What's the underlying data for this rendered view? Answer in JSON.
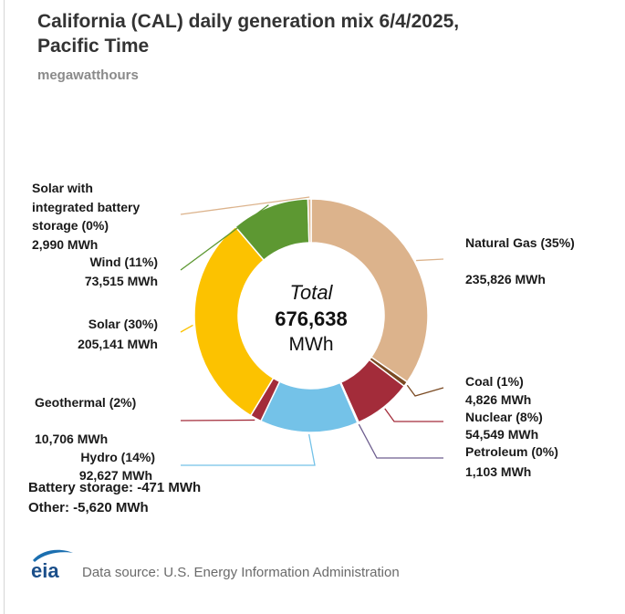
{
  "header": {
    "title_line1": "California (CAL) daily generation mix 6/4/2025,",
    "title_line2": "Pacific Time",
    "subtitle": "megawatthours"
  },
  "chart_data": {
    "type": "pie",
    "variant": "donut",
    "center": {
      "line1": "Total",
      "line2": "676,638",
      "line3": "MWh"
    },
    "slices": [
      {
        "name": "Natural Gas",
        "pct_label": "Natural Gas (35%)",
        "value_label": "235,826 MWh",
        "value": 235826,
        "color": "#dcb38c"
      },
      {
        "name": "Coal",
        "pct_label": "Coal (1%)",
        "value_label": "4,826 MWh",
        "value": 4826,
        "color": "#7a4a22"
      },
      {
        "name": "Nuclear",
        "pct_label": "Nuclear (8%)",
        "value_label": "54,549 MWh",
        "value": 54549,
        "color": "#a32c3a"
      },
      {
        "name": "Petroleum",
        "pct_label": "Petroleum (0%)",
        "value_label": "1,103 MWh",
        "value": 1103,
        "color": "#6e5e8f"
      },
      {
        "name": "Hydro",
        "pct_label": "Hydro (14%)",
        "value_label": "92,627 MWh",
        "value": 92627,
        "color": "#74c2e8"
      },
      {
        "name": "Geothermal",
        "pct_label": "Geothermal (2%)",
        "value_label": "10,706 MWh",
        "value": 10706,
        "color": "#a32c3a"
      },
      {
        "name": "Solar",
        "pct_label": "Solar (30%)",
        "value_label": "205,141 MWh",
        "value": 205141,
        "color": "#fcc200"
      },
      {
        "name": "Wind",
        "pct_label": "Wind (11%)",
        "value_label": "73,515 MWh",
        "value": 73515,
        "color": "#5d9832"
      },
      {
        "name": "Solar with integrated battery storage",
        "pct_label_lines": [
          "Solar with",
          "integrated battery",
          "storage (0%)"
        ],
        "value_label": "2,990 MWh",
        "value": 2990,
        "color": "#dcb38c"
      }
    ]
  },
  "notes": {
    "battery": "Battery storage: -471 MWh",
    "other": "Other: -5,620 MWh"
  },
  "footer": {
    "logo_text": "eia",
    "source": "Data source: U.S. Energy Information Administration"
  }
}
